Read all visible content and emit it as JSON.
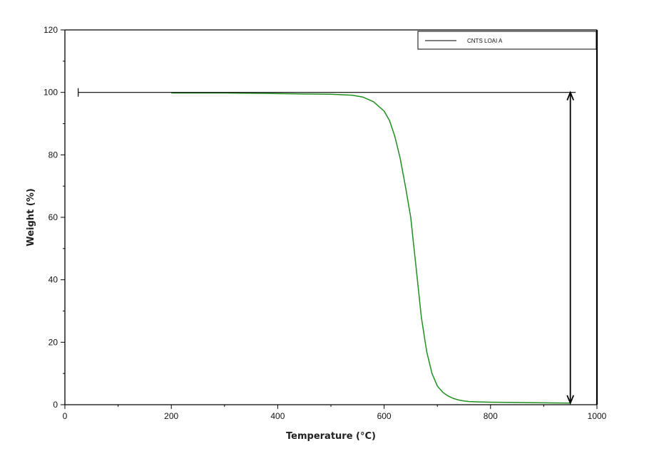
{
  "chart_data": {
    "type": "line",
    "title": "",
    "xlabel": "Temperature (°C)",
    "ylabel": "Weight (%)",
    "xlim": [
      0,
      1000
    ],
    "ylim": [
      0,
      120
    ],
    "x_ticks": [
      "0",
      "200",
      "400",
      "600",
      "800",
      "1000"
    ],
    "y_ticks": [
      "0",
      "20",
      "40",
      "60",
      "80",
      "100",
      "120"
    ],
    "grid": false,
    "legend": {
      "position": "top-right"
    },
    "series": [
      {
        "name": "CNTS LOẠI A",
        "color": "#1f8f1f",
        "x": [
          200,
          300,
          400,
          450,
          500,
          540,
          560,
          580,
          600,
          610,
          620,
          630,
          640,
          650,
          655,
          660,
          665,
          670,
          680,
          690,
          700,
          710,
          720,
          730,
          740,
          750,
          760,
          780,
          800,
          850,
          900,
          950
        ],
        "y": [
          99.8,
          99.8,
          99.6,
          99.5,
          99.4,
          99.1,
          98.5,
          97.0,
          94.0,
          91.0,
          86.0,
          79.0,
          70.0,
          60.0,
          52.0,
          44.0,
          36.0,
          28.0,
          17.0,
          10.0,
          6.0,
          4.0,
          2.8,
          2.0,
          1.5,
          1.2,
          1.0,
          0.9,
          0.8,
          0.7,
          0.6,
          0.5
        ]
      }
    ],
    "annotations": {
      "reference_line": {
        "y": 100,
        "x_start": 25,
        "x_end": 960
      },
      "mass_loss_arrow": {
        "x": 950,
        "y_top": 100,
        "y_bottom": 0.5
      },
      "end_marker_x": 1000
    }
  }
}
